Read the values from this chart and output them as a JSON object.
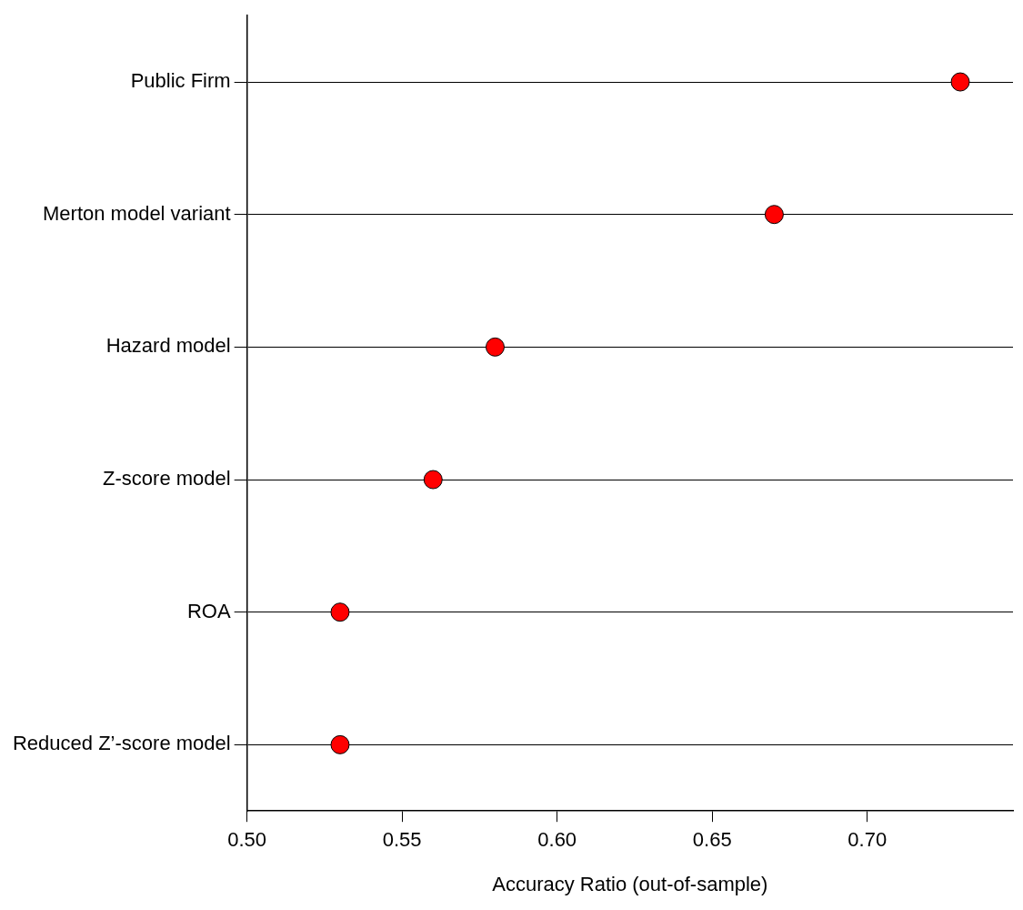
{
  "chart_data": {
    "type": "scatter",
    "orientation": "horizontal",
    "categories": [
      "Public Firm",
      "Merton model variant",
      "Hazard model",
      "Z-score model",
      "ROA",
      "Reduced Z’-score model"
    ],
    "values": [
      0.73,
      0.67,
      0.58,
      0.56,
      0.53,
      0.53
    ],
    "color": "#ff0000",
    "marker": "circle",
    "grid": "y",
    "xlim": [
      0.5,
      0.747
    ],
    "xticks": [
      {
        "value": 0.5,
        "label": "0.50"
      },
      {
        "value": 0.55,
        "label": "0.55"
      },
      {
        "value": 0.6,
        "label": "0.60"
      },
      {
        "value": 0.65,
        "label": "0.65"
      },
      {
        "value": 0.7,
        "label": "0.70"
      }
    ],
    "xlabel": "Accuracy Ratio (out-of-sample)"
  }
}
